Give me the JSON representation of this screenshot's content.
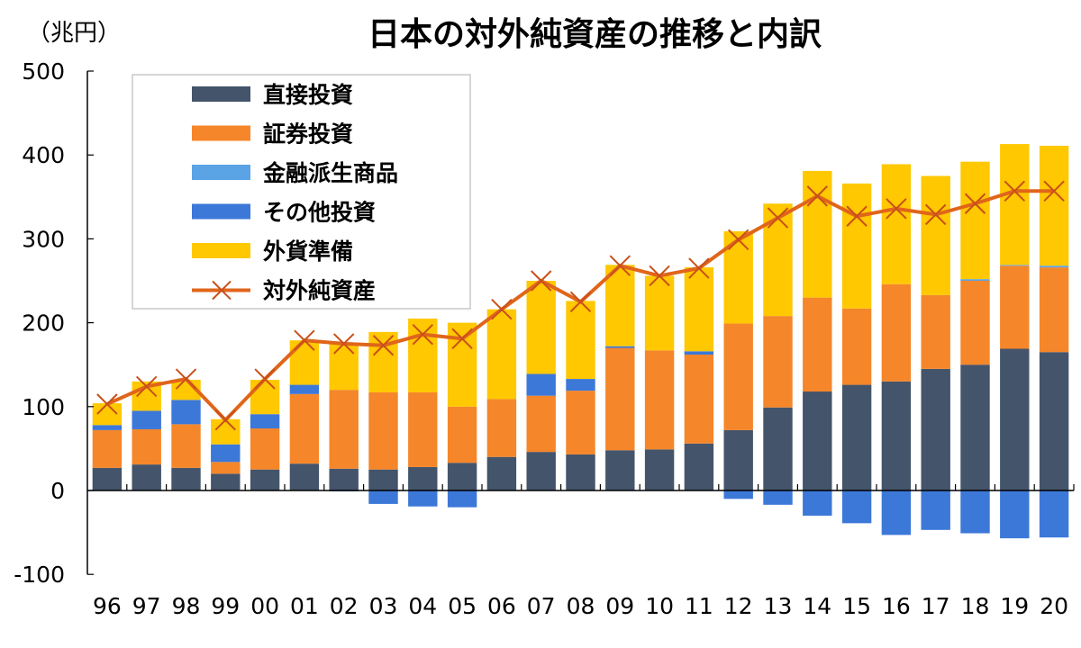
{
  "chart_data": {
    "type": "bar",
    "stacked": true,
    "title": "日本の対外純資産の推移と内訳",
    "ylabel": "（兆円）",
    "xlabel": "",
    "ylim": [
      -100,
      500
    ],
    "yticks": [
      -100,
      0,
      100,
      200,
      300,
      400,
      500
    ],
    "grid": false,
    "legend_position": "top-left",
    "categories": [
      "96",
      "97",
      "98",
      "99",
      "00",
      "01",
      "02",
      "03",
      "04",
      "05",
      "06",
      "07",
      "08",
      "09",
      "10",
      "11",
      "12",
      "13",
      "14",
      "15",
      "16",
      "17",
      "18",
      "19",
      "20"
    ],
    "series": [
      {
        "name": "直接投資",
        "kind": "bar",
        "color": "#44546a",
        "values": [
          27,
          31,
          27,
          20,
          25,
          32,
          26,
          25,
          28,
          33,
          40,
          46,
          43,
          48,
          49,
          56,
          72,
          99,
          118,
          126,
          130,
          145,
          150,
          169,
          165
        ]
      },
      {
        "name": "証券投資",
        "kind": "bar",
        "color": "#f5862a",
        "values": [
          45,
          42,
          52,
          14,
          49,
          83,
          94,
          92,
          89,
          67,
          69,
          67,
          76,
          122,
          118,
          106,
          127,
          109,
          112,
          91,
          116,
          88,
          100,
          99,
          101
        ]
      },
      {
        "name": "金融派生商品",
        "kind": "bar",
        "color": "#5aa4e6",
        "values": [
          0,
          0,
          0,
          0,
          0,
          0,
          0,
          0,
          0,
          0,
          0,
          0,
          0,
          0,
          0,
          0,
          0,
          0,
          0,
          0,
          0,
          0,
          2,
          1,
          2
        ]
      },
      {
        "name": "その他投資",
        "kind": "bar",
        "color": "#3c78d8",
        "values": [
          6,
          22,
          29,
          21,
          17,
          11,
          -1,
          -16,
          -19,
          -20,
          0,
          26,
          14,
          2,
          0,
          4,
          -10,
          -17,
          -30,
          -39,
          -53,
          -47,
          -51,
          -57,
          -56
        ]
      },
      {
        "name": "外貨準備",
        "kind": "bar",
        "color": "#ffc800",
        "values": [
          26,
          35,
          24,
          30,
          41,
          53,
          55,
          72,
          88,
          100,
          107,
          111,
          93,
          97,
          89,
          100,
          110,
          134,
          151,
          149,
          143,
          142,
          140,
          144,
          143
        ]
      },
      {
        "name": "対外純資産",
        "kind": "line",
        "color": "#e0651a",
        "values": [
          103,
          124,
          133,
          84,
          133,
          179,
          175,
          173,
          186,
          181,
          216,
          250,
          225,
          268,
          256,
          265,
          299,
          325,
          351,
          327,
          336,
          329,
          342,
          357,
          357
        ]
      }
    ]
  }
}
